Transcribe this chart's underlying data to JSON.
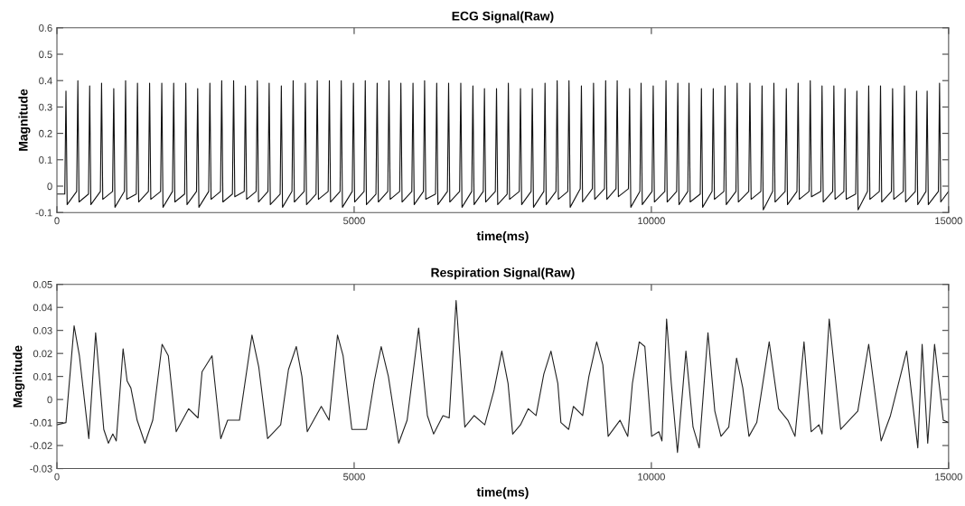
{
  "chart_data": [
    {
      "type": "line",
      "title": "ECG Signal(Raw)",
      "xlabel": "time(ms)",
      "ylabel": "Magnitude",
      "xlim": [
        0,
        15000
      ],
      "xticks": [
        0,
        5000,
        10000,
        15000
      ],
      "ylim": [
        -0.1,
        0.6
      ],
      "yticks": [
        -0.1,
        0,
        0.1,
        0.2,
        0.3,
        0.4,
        0.5,
        0.6
      ],
      "grid": false,
      "series": [
        {
          "color": "#111111",
          "x": [
            0,
            132,
            152,
            172,
            332,
            352,
            372,
            531,
            551,
            571,
            731,
            751,
            771,
            936,
            956,
            976,
            1135,
            1155,
            1175,
            1335,
            1355,
            1375,
            1539,
            1559,
            1579,
            1744,
            1764,
            1784,
            1944,
            1964,
            1984,
            2148,
            2168,
            2188,
            2348,
            2368,
            2388,
            2553,
            2573,
            2593,
            2752,
            2772,
            2792,
            2952,
            2972,
            2992,
            3151,
            3171,
            3191,
            3351,
            3371,
            3391,
            3550,
            3570,
            3590,
            3755,
            3775,
            3795,
            3954,
            3974,
            3994,
            4159,
            4179,
            4199,
            4359,
            4379,
            4399,
            4563,
            4583,
            4603,
            4763,
            4783,
            4803,
            4968,
            4988,
            5008,
            5167,
            5187,
            5207,
            5367,
            5387,
            5407,
            5566,
            5586,
            5606,
            5766,
            5786,
            5806,
            5970,
            5990,
            6010,
            6165,
            6185,
            6205,
            6369,
            6389,
            6409,
            6569,
            6589,
            6609,
            6774,
            6794,
            6814,
            6978,
            6998,
            7018,
            7172,
            7192,
            7212,
            7375,
            7395,
            7415,
            7574,
            7594,
            7614,
            7778,
            7798,
            7818,
            7977,
            7997,
            8017,
            8191,
            8211,
            8231,
            8395,
            8415,
            8435,
            8594,
            8614,
            8634,
            8803,
            8823,
            8843,
            9007,
            9027,
            9047,
            9211,
            9231,
            9251,
            9405,
            9425,
            9445,
            9614,
            9634,
            9654,
            9807,
            9827,
            9847,
            10011,
            10031,
            10051,
            10226,
            10246,
            10266,
            10425,
            10445,
            10465,
            10613,
            10633,
            10653,
            10822,
            10842,
            10862,
            11021,
            11041,
            11061,
            11220,
            11240,
            11260,
            11423,
            11443,
            11463,
            11638,
            11658,
            11678,
            11842,
            11862,
            11882,
            12041,
            12061,
            12081,
            12250,
            12270,
            12290,
            12449,
            12469,
            12489,
            12653,
            12673,
            12693,
            12851,
            12871,
            12891,
            13050,
            13070,
            13090,
            13238,
            13258,
            13278,
            13437,
            13457,
            13477,
            13636,
            13656,
            13676,
            13835,
            13855,
            13875,
            14038,
            14058,
            14078,
            14237,
            14257,
            14277,
            14441,
            14461,
            14481,
            14619,
            14639,
            14659,
            14828,
            14848,
            14868,
            15000
          ],
          "values": [
            -0.03,
            -0.03,
            0.36,
            -0.07,
            -0.02,
            0.4,
            -0.06,
            -0.03,
            0.38,
            -0.07,
            -0.02,
            0.39,
            -0.05,
            -0.02,
            0.37,
            -0.08,
            -0.02,
            0.4,
            -0.05,
            -0.03,
            0.39,
            -0.06,
            -0.02,
            0.39,
            -0.05,
            -0.02,
            0.39,
            -0.08,
            -0.02,
            0.39,
            -0.06,
            -0.03,
            0.39,
            -0.07,
            -0.02,
            0.37,
            -0.08,
            -0.02,
            0.39,
            -0.05,
            -0.02,
            0.4,
            -0.06,
            -0.03,
            0.4,
            -0.04,
            -0.02,
            0.38,
            -0.05,
            -0.02,
            0.4,
            -0.06,
            -0.02,
            0.39,
            -0.07,
            -0.03,
            0.38,
            -0.08,
            -0.02,
            0.4,
            -0.06,
            -0.02,
            0.39,
            -0.07,
            -0.03,
            0.4,
            -0.05,
            -0.02,
            0.4,
            -0.06,
            -0.02,
            0.4,
            -0.08,
            -0.02,
            0.39,
            -0.06,
            -0.02,
            0.4,
            -0.07,
            -0.03,
            0.39,
            -0.06,
            -0.02,
            0.4,
            -0.05,
            -0.02,
            0.39,
            -0.06,
            -0.02,
            0.39,
            -0.07,
            -0.02,
            0.4,
            -0.05,
            -0.03,
            0.39,
            -0.07,
            -0.02,
            0.39,
            -0.06,
            -0.02,
            0.39,
            -0.08,
            -0.02,
            0.38,
            -0.07,
            -0.02,
            0.37,
            -0.06,
            -0.02,
            0.37,
            -0.07,
            -0.03,
            0.39,
            -0.05,
            -0.02,
            0.37,
            -0.07,
            -0.02,
            0.37,
            -0.08,
            -0.02,
            0.39,
            -0.07,
            -0.02,
            0.4,
            -0.05,
            -0.02,
            0.4,
            -0.08,
            -0.01,
            0.38,
            -0.06,
            -0.01,
            0.39,
            -0.05,
            -0.01,
            0.4,
            -0.05,
            -0.01,
            0.4,
            -0.04,
            -0.01,
            0.37,
            -0.08,
            -0.02,
            0.39,
            -0.07,
            -0.02,
            0.38,
            -0.06,
            -0.02,
            0.4,
            -0.06,
            -0.02,
            0.39,
            -0.07,
            -0.02,
            0.39,
            -0.06,
            -0.03,
            0.37,
            -0.08,
            -0.02,
            0.37,
            -0.05,
            -0.02,
            0.38,
            -0.07,
            -0.02,
            0.39,
            -0.06,
            -0.02,
            0.39,
            -0.05,
            -0.02,
            0.38,
            -0.09,
            -0.02,
            0.39,
            -0.06,
            -0.02,
            0.37,
            -0.07,
            -0.02,
            0.39,
            -0.05,
            -0.02,
            0.4,
            -0.04,
            -0.02,
            0.38,
            -0.06,
            -0.02,
            0.38,
            -0.05,
            -0.02,
            0.37,
            -0.05,
            -0.03,
            0.36,
            -0.09,
            -0.02,
            0.38,
            -0.05,
            -0.02,
            0.38,
            -0.06,
            -0.02,
            0.37,
            -0.05,
            -0.02,
            0.38,
            -0.06,
            -0.02,
            0.36,
            -0.07,
            -0.02,
            0.36,
            -0.07,
            -0.02,
            0.39,
            -0.06,
            -0.02
          ]
        }
      ]
    },
    {
      "type": "line",
      "title": "Respiration Signal(Raw)",
      "xlabel": "time(ms)",
      "ylabel": "Magnitude",
      "xlim": [
        0,
        15000
      ],
      "xticks": [
        0,
        5000,
        10000,
        15000
      ],
      "ylim": [
        -0.03,
        0.05
      ],
      "yticks": [
        -0.03,
        -0.02,
        -0.01,
        0,
        0.01,
        0.02,
        0.03,
        0.04,
        0.05
      ],
      "grid": false,
      "series": [
        {
          "color": "#222222",
          "x": [
            0,
            152,
            289,
            378,
            536,
            651,
            788,
            866,
            940,
            998,
            1113,
            1181,
            1244,
            1349,
            1480,
            1612,
            1769,
            1874,
            2006,
            2216,
            2373,
            2441,
            2609,
            2756,
            2872,
            3071,
            3281,
            3396,
            3544,
            3764,
            3895,
            4027,
            4121,
            4211,
            4447,
            4578,
            4720,
            4814,
            4961,
            5208,
            5339,
            5455,
            5576,
            5749,
            5891,
            6085,
            6232,
            6337,
            6494,
            6599,
            6715,
            6862,
            7019,
            7197,
            7353,
            7484,
            7589,
            7667,
            7798,
            7929,
            8060,
            8190,
            8311,
            8426,
            8478,
            8609,
            8688,
            8844,
            8949,
            9080,
            9184,
            9273,
            9472,
            9603,
            9681,
            9796,
            9890,
            10005,
            10126,
            10178,
            10256,
            10335,
            10439,
            10581,
            10701,
            10805,
            10952,
            11067,
            11171,
            11302,
            11433,
            11538,
            11642,
            11773,
            11982,
            12139,
            12296,
            12416,
            12568,
            12688,
            12819,
            12871,
            12992,
            13185,
            13473,
            13656,
            13865,
            14022,
            14294,
            14482,
            14555,
            14649,
            14764,
            14911,
            15000
          ],
          "values": [
            -0.011,
            -0.01,
            0.032,
            0.019,
            -0.017,
            0.029,
            -0.013,
            -0.019,
            -0.015,
            -0.018,
            0.022,
            0.008,
            0.005,
            -0.009,
            -0.019,
            -0.009,
            0.024,
            0.019,
            -0.014,
            -0.004,
            -0.008,
            0.012,
            0.019,
            -0.017,
            -0.009,
            -0.009,
            0.028,
            0.014,
            -0.017,
            -0.011,
            0.013,
            0.023,
            0.01,
            -0.014,
            -0.003,
            -0.009,
            0.028,
            0.019,
            -0.013,
            -0.013,
            0.008,
            0.023,
            0.01,
            -0.019,
            -0.009,
            0.031,
            -0.007,
            -0.015,
            -0.007,
            -0.008,
            0.043,
            -0.012,
            -0.007,
            -0.011,
            0.004,
            0.021,
            0.007,
            -0.015,
            -0.011,
            -0.004,
            -0.007,
            0.011,
            0.021,
            0.007,
            -0.01,
            -0.013,
            -0.003,
            -0.007,
            0.01,
            0.025,
            0.015,
            -0.016,
            -0.009,
            -0.016,
            0.007,
            0.025,
            0.023,
            -0.016,
            -0.014,
            -0.018,
            0.035,
            0.007,
            -0.023,
            0.021,
            -0.012,
            -0.021,
            0.029,
            -0.005,
            -0.016,
            -0.012,
            0.018,
            0.005,
            -0.016,
            -0.01,
            0.025,
            -0.004,
            -0.009,
            -0.016,
            0.025,
            -0.014,
            -0.011,
            -0.015,
            0.035,
            -0.013,
            -0.005,
            0.024,
            -0.018,
            -0.007,
            0.021,
            -0.021,
            0.024,
            -0.019,
            0.024,
            -0.009,
            -0.01
          ]
        }
      ]
    }
  ]
}
